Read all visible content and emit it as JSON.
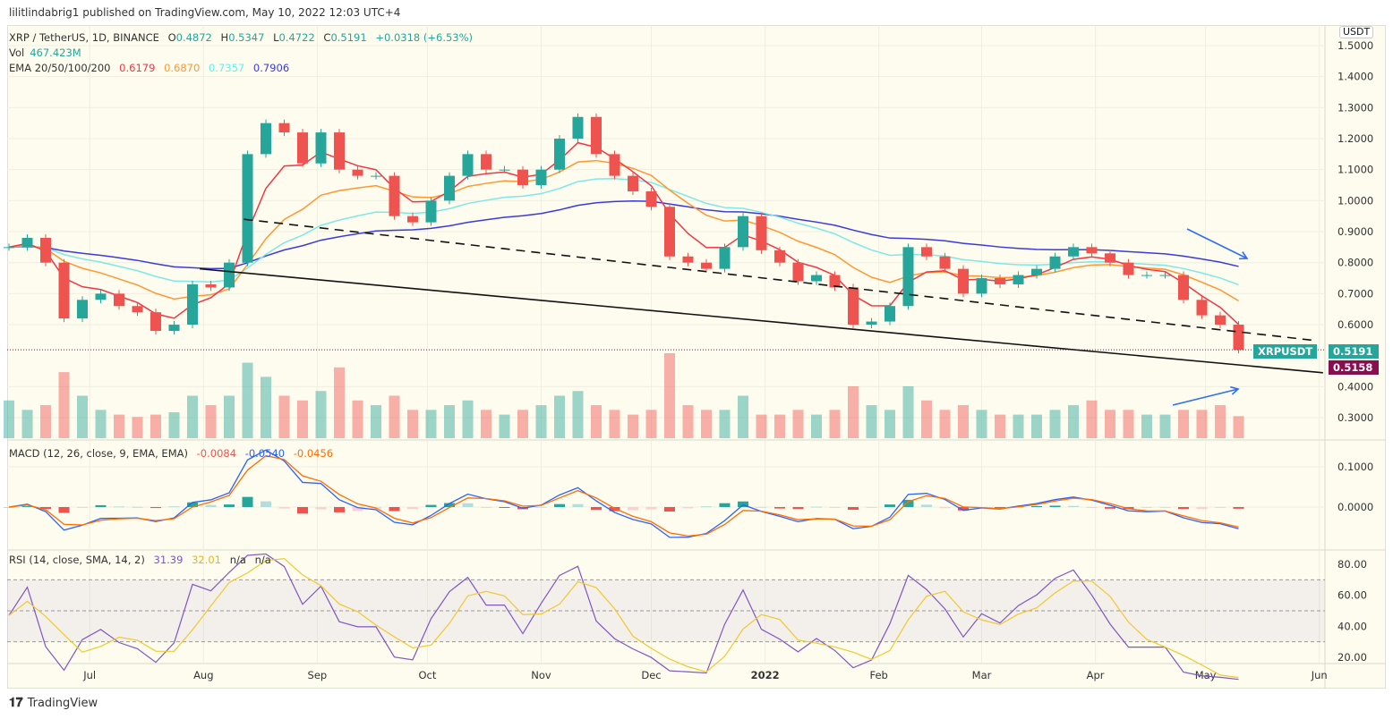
{
  "header": {
    "published": "lilitlindabrig1 published on TradingView.com, May 10, 2022 12:03 UTC+4"
  },
  "legend": {
    "symbol": "XRP / TetherUS, 1D, BINANCE",
    "o_label": "O",
    "o": "0.4872",
    "h_label": "H",
    "h": "0.5347",
    "l_label": "L",
    "l": "0.4722",
    "c_label": "C",
    "c": "0.5191",
    "change": "+0.0318 (+6.53%)",
    "vol_label": "Vol",
    "vol": "467.423M",
    "ema_label": "EMA 20/50/100/200",
    "ema20": "0.6179",
    "ema50": "0.6870",
    "ema100": "0.7357",
    "ema200": "0.7906",
    "macd_label": "MACD (12, 26, close, 9, EMA, EMA)",
    "macd_hist": "-0.0084",
    "macd": "-0.0540",
    "macd_signal": "-0.0456",
    "rsi_label": "RSI (14, close, SMA, 14, 2)",
    "rsi": "31.39",
    "rsi_ma": "32.01",
    "na1": "n/a",
    "na2": "n/a"
  },
  "price_axis": {
    "currency": "USDT",
    "ticks": [
      "1.5000",
      "1.4000",
      "1.3000",
      "1.2000",
      "1.1000",
      "1.0000",
      "0.9000",
      "0.8000",
      "0.7000",
      "0.6000",
      "0.4000",
      "0.3000"
    ],
    "last_symbol": "XRPUSDT",
    "last_price": "0.5191",
    "low_marker": "0.5158"
  },
  "macd_axis": {
    "ticks": [
      "0.1000",
      "0.0000"
    ]
  },
  "rsi_axis": {
    "ticks": [
      "80.00",
      "60.00",
      "40.00",
      "20.00"
    ]
  },
  "time_axis": {
    "labels": [
      "Jul",
      "Aug",
      "Sep",
      "Oct",
      "Nov",
      "Dec",
      "2022",
      "Feb",
      "Mar",
      "Apr",
      "May",
      "Jun"
    ]
  },
  "colors": {
    "up": "#26a69a",
    "down": "#ef5350",
    "ema20": "#f23645",
    "ema50": "#ff9832",
    "ema100": "#7ee8e8",
    "ema200": "#3a3ae0",
    "macd": "#2962ff",
    "signal": "#ff6d00",
    "rsi": "#7e57c2",
    "rsi_ma": "#f0c930",
    "arrow": "#2e6ef0"
  },
  "chart_data": {
    "type": "candlestick",
    "symbol": "XRPUSDT",
    "interval": "1D",
    "dates": [
      "2021-06-09",
      "2021-06-14",
      "2021-06-19",
      "2021-06-24",
      "2021-06-29",
      "2021-07-04",
      "2021-07-09",
      "2021-07-14",
      "2021-07-19",
      "2021-07-24",
      "2021-07-29",
      "2021-08-03",
      "2021-08-08",
      "2021-08-13",
      "2021-08-18",
      "2021-08-23",
      "2021-08-28",
      "2021-09-02",
      "2021-09-07",
      "2021-09-12",
      "2021-09-17",
      "2021-09-22",
      "2021-09-27",
      "2021-10-02",
      "2021-10-07",
      "2021-10-12",
      "2021-10-17",
      "2021-10-22",
      "2021-10-27",
      "2021-11-01",
      "2021-11-06",
      "2021-11-11",
      "2021-11-16",
      "2021-11-21",
      "2021-11-26",
      "2021-12-01",
      "2021-12-06",
      "2021-12-11",
      "2021-12-16",
      "2021-12-21",
      "2021-12-26",
      "2021-12-31",
      "2022-01-05",
      "2022-01-10",
      "2022-01-15",
      "2022-01-20",
      "2022-01-25",
      "2022-01-30",
      "2022-02-04",
      "2022-02-09",
      "2022-02-14",
      "2022-02-19",
      "2022-02-24",
      "2022-03-01",
      "2022-03-06",
      "2022-03-11",
      "2022-03-16",
      "2022-03-21",
      "2022-03-26",
      "2022-03-31",
      "2022-04-05",
      "2022-04-10",
      "2022-04-15",
      "2022-04-20",
      "2022-04-25",
      "2022-04-30",
      "2022-05-05",
      "2022-05-10"
    ],
    "close": [
      0.85,
      0.88,
      0.8,
      0.62,
      0.68,
      0.7,
      0.66,
      0.64,
      0.58,
      0.6,
      0.73,
      0.72,
      0.8,
      1.15,
      1.25,
      1.22,
      1.12,
      1.22,
      1.1,
      1.08,
      1.08,
      0.95,
      0.93,
      1.0,
      1.08,
      1.15,
      1.1,
      1.1,
      1.05,
      1.1,
      1.2,
      1.27,
      1.15,
      1.08,
      1.03,
      0.98,
      0.82,
      0.8,
      0.78,
      0.85,
      0.95,
      0.84,
      0.8,
      0.74,
      0.76,
      0.72,
      0.6,
      0.61,
      0.66,
      0.85,
      0.82,
      0.78,
      0.7,
      0.75,
      0.73,
      0.76,
      0.78,
      0.82,
      0.85,
      0.83,
      0.8,
      0.76,
      0.76,
      0.76,
      0.68,
      0.63,
      0.6,
      0.5191
    ],
    "volume_m": [
      800,
      600,
      700,
      1400,
      900,
      600,
      500,
      450,
      500,
      550,
      900,
      700,
      900,
      1600,
      1300,
      900,
      800,
      1000,
      1500,
      800,
      700,
      900,
      600,
      600,
      700,
      800,
      600,
      500,
      600,
      700,
      900,
      1000,
      700,
      600,
      500,
      600,
      1800,
      700,
      600,
      600,
      900,
      500,
      500,
      600,
      500,
      600,
      1100,
      700,
      600,
      1100,
      800,
      600,
      700,
      600,
      500,
      500,
      500,
      600,
      700,
      800,
      600,
      600,
      500,
      500,
      600,
      600,
      700,
      467.423
    ],
    "trendlines": [
      {
        "style": "solid",
        "from": {
          "date": "2021-07-31",
          "price": 0.78
        },
        "to": {
          "date": "2022-06-02",
          "price": 0.445
        }
      },
      {
        "style": "dashed",
        "from": {
          "date": "2021-08-12",
          "price": 0.94
        },
        "to": {
          "date": "2022-05-30",
          "price": 0.55
        }
      }
    ],
    "horizontal_line": {
      "price": 0.5191,
      "style": "dotted"
    },
    "annotations": [
      {
        "type": "arrow",
        "direction": "down-right",
        "near": "EMA lines"
      },
      {
        "type": "arrow",
        "direction": "up-right",
        "near": "volume"
      }
    ],
    "ylim": [
      0.22,
      1.55
    ],
    "y_scale": "linear",
    "grid": true
  }
}
